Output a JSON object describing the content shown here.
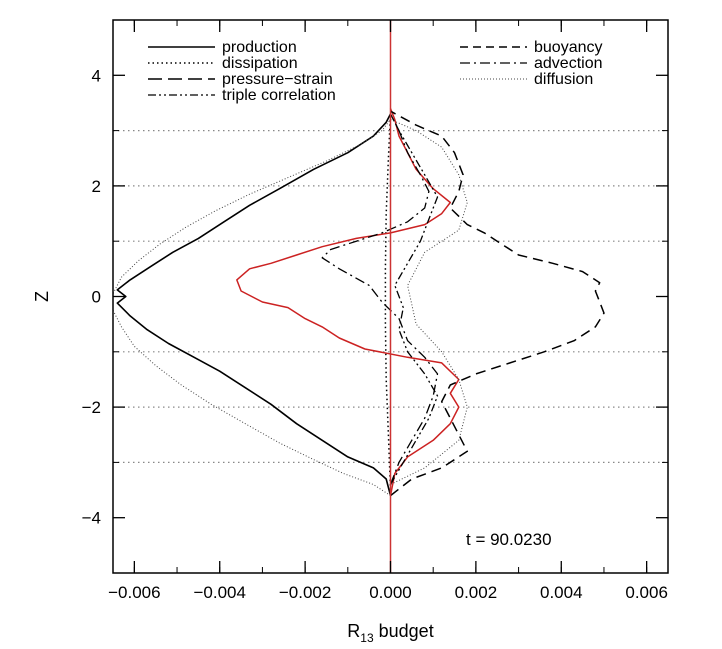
{
  "chart_data": {
    "type": "line",
    "orientation": "vertical-profile",
    "xlabel_main": "R",
    "xlabel_sub": "13",
    "xlabel_rest": " budget",
    "ylabel": "Z",
    "xlim": [
      -0.0065,
      0.0065
    ],
    "ylim": [
      -5,
      5
    ],
    "xticks": [
      -0.006,
      -0.004,
      -0.002,
      0.0,
      0.002,
      0.004,
      0.006
    ],
    "xtick_labels": [
      "−0.006",
      "−0.004",
      "−0.002",
      "0.000",
      "0.002",
      "0.004",
      "0.006"
    ],
    "yticks": [
      -4,
      -2,
      0,
      2,
      4
    ],
    "ytick_labels": [
      "−4",
      "−2",
      "0",
      "2",
      "4"
    ],
    "reference_lines_z": [
      -3,
      -2,
      -1,
      1,
      2,
      3
    ],
    "zero_line_color": "#cc3333",
    "annotation": "t  =  90.0230",
    "legend": {
      "left": [
        {
          "label": "production",
          "style": "solid"
        },
        {
          "label": "dissipation",
          "style": "dotted"
        },
        {
          "label": "pressure−strain",
          "style": "long-dash"
        },
        {
          "label": "triple correlation",
          "style": "dash-dot-dot"
        }
      ],
      "right": [
        {
          "label": "buoyancy",
          "style": "dashed"
        },
        {
          "label": "advection",
          "style": "dash-dot"
        },
        {
          "label": "diffusion",
          "style": "fine-dotted"
        }
      ]
    },
    "series": [
      {
        "name": "production",
        "color": "#000000",
        "dash": "",
        "width": 1.6,
        "points": [
          [
            0.0,
            -3.6
          ],
          [
            -0.0001,
            -3.3
          ],
          [
            -0.0004,
            -3.1
          ],
          [
            -0.001,
            -2.9
          ],
          [
            -0.0016,
            -2.6
          ],
          [
            -0.0022,
            -2.3
          ],
          [
            -0.0028,
            -1.95
          ],
          [
            -0.0034,
            -1.65
          ],
          [
            -0.004,
            -1.35
          ],
          [
            -0.0046,
            -1.1
          ],
          [
            -0.0052,
            -0.85
          ],
          [
            -0.0057,
            -0.6
          ],
          [
            -0.0061,
            -0.35
          ],
          [
            -0.0064,
            -0.12
          ],
          [
            -0.0062,
            0.0
          ],
          [
            -0.0064,
            0.12
          ],
          [
            -0.0061,
            0.3
          ],
          [
            -0.0056,
            0.55
          ],
          [
            -0.0051,
            0.8
          ],
          [
            -0.0045,
            1.05
          ],
          [
            -0.0039,
            1.35
          ],
          [
            -0.0033,
            1.65
          ],
          [
            -0.0026,
            1.95
          ],
          [
            -0.0018,
            2.3
          ],
          [
            -0.001,
            2.6
          ],
          [
            -0.0004,
            2.9
          ],
          [
            -0.0001,
            3.15
          ],
          [
            0.0,
            3.3
          ]
        ]
      },
      {
        "name": "dissipation",
        "color": "#000000",
        "dash": "1.5,3",
        "width": 1.5,
        "points": [
          [
            0.0,
            -3.5
          ],
          [
            -5e-05,
            -2.5
          ],
          [
            -0.0001,
            -1.5
          ],
          [
            -0.00012,
            -0.5
          ],
          [
            -0.00012,
            0.5
          ],
          [
            -0.0001,
            1.5
          ],
          [
            -5e-05,
            2.5
          ],
          [
            0.0,
            3.3
          ]
        ]
      },
      {
        "name": "pressure−strain",
        "color": "#cc2222",
        "dash": "",
        "width": 1.5,
        "points": [
          [
            0.0,
            -3.6
          ],
          [
            0.0001,
            -3.2
          ],
          [
            0.0004,
            -2.9
          ],
          [
            0.001,
            -2.6
          ],
          [
            0.0014,
            -2.3
          ],
          [
            0.0016,
            -2.0
          ],
          [
            0.0014,
            -1.75
          ],
          [
            0.0016,
            -1.5
          ],
          [
            0.0012,
            -1.2
          ],
          [
            0.0004,
            -1.1
          ],
          [
            -0.0006,
            -0.95
          ],
          [
            -0.0012,
            -0.75
          ],
          [
            -0.0016,
            -0.55
          ],
          [
            -0.002,
            -0.4
          ],
          [
            -0.0024,
            -0.2
          ],
          [
            -0.003,
            -0.1
          ],
          [
            -0.0035,
            0.1
          ],
          [
            -0.0036,
            0.3
          ],
          [
            -0.0033,
            0.5
          ],
          [
            -0.0028,
            0.6
          ],
          [
            -0.0022,
            0.75
          ],
          [
            -0.0016,
            0.9
          ],
          [
            -0.0008,
            1.05
          ],
          [
            0.0,
            1.15
          ],
          [
            0.0008,
            1.3
          ],
          [
            0.0012,
            1.5
          ],
          [
            0.0014,
            1.7
          ],
          [
            0.001,
            1.95
          ],
          [
            0.0006,
            2.3
          ],
          [
            0.0004,
            2.6
          ],
          [
            0.0002,
            2.9
          ],
          [
            0.0001,
            3.2
          ],
          [
            0.0,
            3.4
          ]
        ]
      },
      {
        "name": "triple correlation",
        "color": "#000000",
        "dash": "8,3,2,3,2,3",
        "width": 1.3,
        "points": [
          [
            0.0,
            -3.4
          ],
          [
            0.0003,
            -3.0
          ],
          [
            0.0006,
            -2.6
          ],
          [
            0.0009,
            -2.2
          ],
          [
            0.0011,
            -1.8
          ],
          [
            0.0008,
            -1.4
          ],
          [
            0.0004,
            -1.0
          ],
          [
            0.0002,
            -0.6
          ],
          [
            0.0003,
            -0.2
          ],
          [
            0.0001,
            0.2
          ],
          [
            0.0004,
            0.6
          ],
          [
            0.0007,
            1.0
          ],
          [
            0.0009,
            1.4
          ],
          [
            0.0011,
            1.8
          ],
          [
            0.0008,
            2.2
          ],
          [
            0.0005,
            2.6
          ],
          [
            0.0002,
            3.0
          ],
          [
            0.0,
            3.3
          ]
        ]
      },
      {
        "name": "buoyancy",
        "color": "#000000",
        "dash": "10,6",
        "width": 1.5,
        "points": [
          [
            0.0,
            -3.6
          ],
          [
            0.0005,
            -3.3
          ],
          [
            0.0012,
            -3.1
          ],
          [
            0.0018,
            -2.8
          ],
          [
            0.0016,
            -2.5
          ],
          [
            0.0014,
            -2.2
          ],
          [
            0.0012,
            -1.9
          ],
          [
            0.0014,
            -1.6
          ],
          [
            0.002,
            -1.4
          ],
          [
            0.0028,
            -1.2
          ],
          [
            0.0036,
            -1.0
          ],
          [
            0.0043,
            -0.8
          ],
          [
            0.0048,
            -0.55
          ],
          [
            0.005,
            -0.3
          ],
          [
            0.0049,
            -0.1
          ],
          [
            0.0048,
            0.1
          ],
          [
            0.0049,
            0.25
          ],
          [
            0.0045,
            0.45
          ],
          [
            0.0038,
            0.6
          ],
          [
            0.003,
            0.75
          ],
          [
            0.0026,
            0.95
          ],
          [
            0.0022,
            1.15
          ],
          [
            0.0018,
            1.3
          ],
          [
            0.0014,
            1.6
          ],
          [
            0.0016,
            1.9
          ],
          [
            0.0017,
            2.2
          ],
          [
            0.0015,
            2.6
          ],
          [
            0.0012,
            2.9
          ],
          [
            0.0006,
            3.1
          ],
          [
            0.0,
            3.35
          ]
        ]
      },
      {
        "name": "advection",
        "color": "#000000",
        "dash": "10,4,2,4",
        "width": 1.3,
        "points": [
          [
            0.0,
            -3.4
          ],
          [
            0.0002,
            -3.0
          ],
          [
            0.0005,
            -2.6
          ],
          [
            0.0008,
            -2.2
          ],
          [
            0.001,
            -1.8
          ],
          [
            0.0011,
            -1.4
          ],
          [
            0.0008,
            -1.1
          ],
          [
            0.0004,
            -0.8
          ],
          [
            0.0002,
            -0.4
          ],
          [
            -0.0002,
            -0.1
          ],
          [
            -0.0005,
            0.2
          ],
          [
            -0.0012,
            0.5
          ],
          [
            -0.0016,
            0.7
          ],
          [
            -0.0014,
            0.85
          ],
          [
            -0.0008,
            1.0
          ],
          [
            -0.0002,
            1.15
          ],
          [
            0.0004,
            1.35
          ],
          [
            0.0008,
            1.6
          ],
          [
            0.0009,
            1.9
          ],
          [
            0.0007,
            2.2
          ],
          [
            0.0004,
            2.6
          ],
          [
            0.0002,
            3.0
          ],
          [
            0.0,
            3.3
          ]
        ]
      },
      {
        "name": "diffusion",
        "color": "#444444",
        "dash": "1,2",
        "width": 1.0,
        "points": [
          [
            0.0,
            -3.6
          ],
          [
            -0.0004,
            -3.4
          ],
          [
            -0.0011,
            -3.2
          ],
          [
            -0.0018,
            -2.95
          ],
          [
            -0.0026,
            -2.65
          ],
          [
            -0.0034,
            -2.3
          ],
          [
            -0.0042,
            -1.95
          ],
          [
            -0.0049,
            -1.6
          ],
          [
            -0.0055,
            -1.25
          ],
          [
            -0.006,
            -0.9
          ],
          [
            -0.0063,
            -0.55
          ],
          [
            -0.0065,
            -0.25
          ],
          [
            -0.0065,
            0.05
          ],
          [
            -0.0063,
            0.35
          ],
          [
            -0.0059,
            0.65
          ],
          [
            -0.0054,
            0.95
          ],
          [
            -0.0048,
            1.25
          ],
          [
            -0.0041,
            1.55
          ],
          [
            -0.0033,
            1.85
          ],
          [
            -0.0024,
            2.15
          ],
          [
            -0.0015,
            2.45
          ],
          [
            -0.0007,
            2.75
          ],
          [
            -0.0002,
            3.0
          ],
          [
            0.0,
            3.2
          ],
          [
            0.0006,
            3.0
          ],
          [
            0.0012,
            2.7
          ],
          [
            0.0016,
            2.2
          ],
          [
            0.0018,
            1.7
          ],
          [
            0.0016,
            1.2
          ],
          [
            0.0008,
            0.8
          ],
          [
            0.0004,
            0.2
          ],
          [
            0.0006,
            -0.5
          ],
          [
            0.0012,
            -1.0
          ],
          [
            0.0016,
            -1.5
          ],
          [
            0.0018,
            -2.0
          ],
          [
            0.0016,
            -2.6
          ],
          [
            0.0008,
            -3.1
          ],
          [
            0.0,
            -3.4
          ]
        ]
      }
    ]
  }
}
